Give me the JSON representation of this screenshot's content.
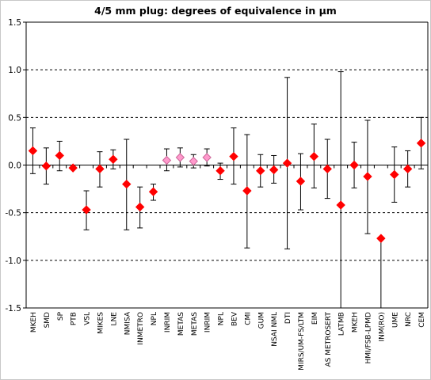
{
  "chart_data": {
    "type": "scatter",
    "title": "4/5 mm plug: degrees of equivalence in µm",
    "xlabel": "",
    "ylabel": "",
    "ylim": [
      -1.5,
      1.5
    ],
    "yticks": [
      -1.5,
      -1.0,
      -0.5,
      0.0,
      0.5,
      1.0,
      1.5
    ],
    "ytick_labels": [
      "-1.5",
      "-1.0",
      "-0.5",
      "0.0",
      "0.5",
      "1.0",
      "1.5"
    ],
    "grid": "horizontal dashed at ±0.5 and ±1.0",
    "legend": "none",
    "colors": {
      "primary": "#ff0000",
      "secondary": "#ff99cc",
      "secondary_edge": "#cc6699",
      "axis": "#000000"
    },
    "categories": [
      "MKEH",
      "SMD",
      "SP",
      "PTB",
      "VSL",
      "MIKES",
      "LNE",
      "NMISA",
      "INMETRO",
      "NPL",
      "INRIM",
      "METAS",
      "METAS",
      "INRIM",
      "NPL",
      "BEV",
      "CMI",
      "GUM",
      "NSAI NML",
      "DTI",
      "MIRS/UM-FS/LTM",
      "EIM",
      "AS METROSERT",
      "LATMB",
      "MKEH",
      "HMI/FSB-LPMD",
      "INM(RO)",
      "UME",
      "NRC",
      "CEM"
    ],
    "points": [
      {
        "y": 0.15,
        "low": -0.09,
        "high": 0.39,
        "style": "primary"
      },
      {
        "y": -0.01,
        "low": -0.2,
        "high": 0.18,
        "style": "primary"
      },
      {
        "y": 0.1,
        "low": -0.06,
        "high": 0.25,
        "style": "primary"
      },
      {
        "y": -0.03,
        "low": null,
        "high": null,
        "style": "primary"
      },
      {
        "y": -0.47,
        "low": -0.68,
        "high": -0.27,
        "style": "primary"
      },
      {
        "y": -0.04,
        "low": -0.23,
        "high": 0.14,
        "style": "primary"
      },
      {
        "y": 0.06,
        "low": -0.04,
        "high": 0.16,
        "style": "primary"
      },
      {
        "y": -0.2,
        "low": -0.68,
        "high": 0.27,
        "style": "primary"
      },
      {
        "y": -0.44,
        "low": -0.66,
        "high": -0.23,
        "style": "primary"
      },
      {
        "y": -0.28,
        "low": -0.37,
        "high": -0.2,
        "style": "primary"
      },
      {
        "y": 0.05,
        "low": -0.06,
        "high": 0.17,
        "style": "secondary"
      },
      {
        "y": 0.08,
        "low": -0.02,
        "high": 0.18,
        "style": "secondary"
      },
      {
        "y": 0.04,
        "low": -0.03,
        "high": 0.11,
        "style": "secondary"
      },
      {
        "y": 0.08,
        "low": -0.01,
        "high": 0.17,
        "style": "secondary"
      },
      {
        "y": -0.06,
        "low": -0.15,
        "high": 0.02,
        "style": "primary"
      },
      {
        "y": 0.09,
        "low": -0.2,
        "high": 0.39,
        "style": "primary"
      },
      {
        "y": -0.27,
        "low": -0.87,
        "high": 0.32,
        "style": "primary"
      },
      {
        "y": -0.06,
        "low": -0.23,
        "high": 0.11,
        "style": "primary"
      },
      {
        "y": -0.05,
        "low": -0.19,
        "high": 0.1,
        "style": "primary"
      },
      {
        "y": 0.02,
        "low": -0.88,
        "high": 0.92,
        "style": "primary"
      },
      {
        "y": -0.17,
        "low": -0.47,
        "high": 0.12,
        "style": "primary"
      },
      {
        "y": 0.09,
        "low": -0.24,
        "high": 0.43,
        "style": "primary"
      },
      {
        "y": -0.04,
        "low": -0.35,
        "high": 0.27,
        "style": "primary"
      },
      {
        "y": -0.42,
        "low": -1.5,
        "high": 0.98,
        "style": "primary"
      },
      {
        "y": 0.0,
        "low": -0.24,
        "high": 0.24,
        "style": "primary"
      },
      {
        "y": -0.12,
        "low": -0.72,
        "high": 0.47,
        "style": "primary"
      },
      {
        "y": -0.77,
        "low": -1.5,
        "high": null,
        "style": "primary"
      },
      {
        "y": -0.1,
        "low": -0.39,
        "high": 0.19,
        "style": "primary"
      },
      {
        "y": -0.04,
        "low": -0.23,
        "high": 0.15,
        "style": "primary"
      },
      {
        "y": 0.23,
        "low": -0.04,
        "high": 0.5,
        "style": "primary"
      }
    ]
  }
}
